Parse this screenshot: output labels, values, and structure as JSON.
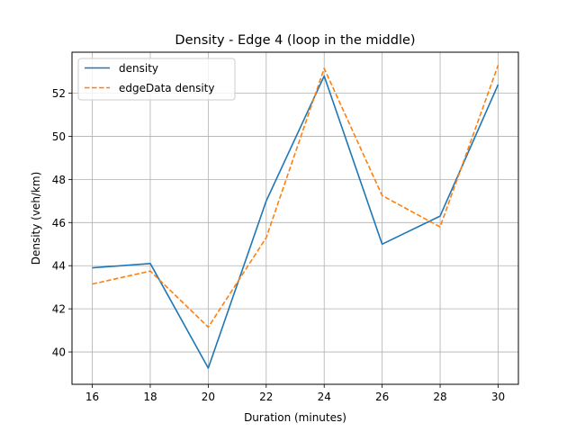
{
  "chart_data": {
    "type": "line",
    "title": "Density - Edge 4 (loop in the middle)",
    "xlabel": "Duration (minutes)",
    "ylabel": "Density (veh/km)",
    "xlim": [
      15.3,
      30.7
    ],
    "ylim": [
      38.5,
      53.9
    ],
    "xticks": [
      16,
      18,
      20,
      22,
      24,
      26,
      28,
      30
    ],
    "yticks": [
      40,
      42,
      44,
      46,
      48,
      50,
      52
    ],
    "grid": true,
    "legend_position": "top-left",
    "x": [
      16,
      18,
      20,
      22,
      24,
      26,
      28,
      30
    ],
    "series": [
      {
        "name": "density",
        "color": "#1f77b4",
        "style": "solid",
        "values": [
          43.9,
          44.1,
          39.25,
          47.0,
          52.8,
          45.0,
          46.3,
          52.4
        ]
      },
      {
        "name": "edgeData density",
        "color": "#ff7f0e",
        "style": "dashed",
        "values": [
          43.15,
          43.75,
          41.15,
          45.3,
          53.15,
          47.25,
          45.8,
          53.3
        ]
      }
    ]
  }
}
